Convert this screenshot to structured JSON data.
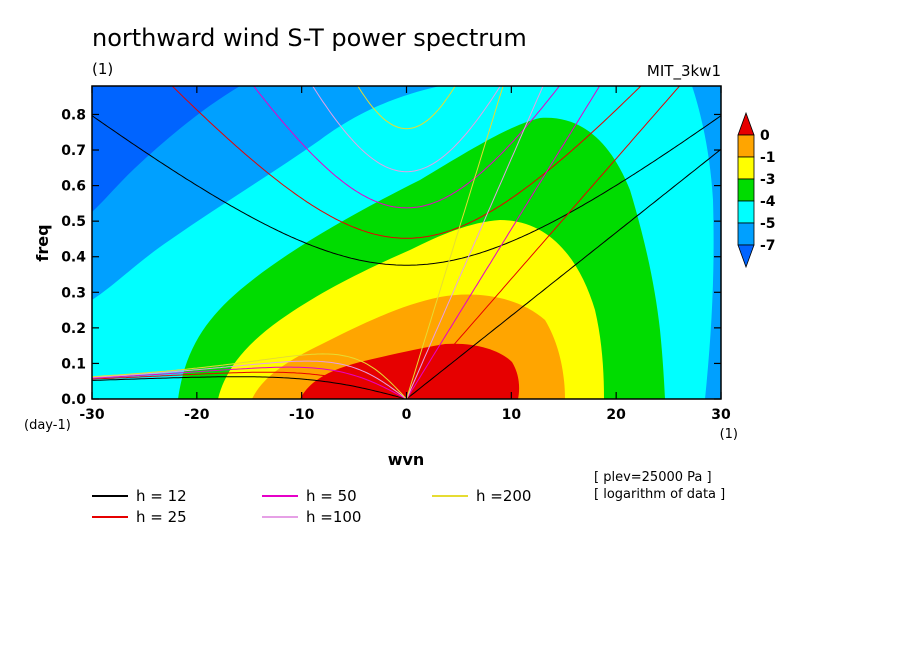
{
  "chart_data": {
    "type": "heatmap",
    "title": "northward wind S-T power spectrum",
    "subtitle_left": "(1)",
    "subtitle_right": "MIT_3kw1",
    "xlabel": "wvn",
    "ylabel": "freq",
    "x_unit_label": "(1)",
    "y_unit_label": "(day-1)",
    "xlim": [
      -30,
      30
    ],
    "ylim": [
      0,
      0.88
    ],
    "xticks": [
      -30,
      -20,
      -10,
      0,
      10,
      20,
      30
    ],
    "xtick_labels": [
      "-30",
      "-20",
      "-10",
      "0",
      "10",
      "20",
      "30"
    ],
    "yticks": [
      0,
      0.1,
      0.2,
      0.3,
      0.4,
      0.5,
      0.6,
      0.7,
      0.8
    ],
    "ytick_labels": [
      "0.0",
      "0.1",
      "0.2",
      "0.3",
      "0.4",
      "0.5",
      "0.6",
      "0.7",
      "0.8"
    ],
    "colorbar": {
      "levels": [
        0,
        -1,
        -3,
        -4,
        -5,
        -7
      ],
      "labels": [
        "0",
        "-1",
        "-3",
        "-4",
        "-5",
        "-7"
      ],
      "colors": [
        "#e60000",
        "#ffa500",
        "#ffff00",
        "#00dc00",
        "#00ffff",
        "#00a0ff",
        "#0064ff"
      ]
    },
    "dispersion_curves": [
      {
        "name": "h = 12",
        "h": 12,
        "color": "#000000"
      },
      {
        "name": "h = 25",
        "h": 25,
        "color": "#e60000"
      },
      {
        "name": "h = 50",
        "h": 50,
        "color": "#e600c8"
      },
      {
        "name": "h =100",
        "h": 100,
        "color": "#e6a0e6"
      },
      {
        "name": "h =200",
        "h": 200,
        "color": "#e6dc32"
      }
    ],
    "annotations": [
      "[ plev=25000 Pa ]",
      "[ logarithm of data ]"
    ]
  }
}
